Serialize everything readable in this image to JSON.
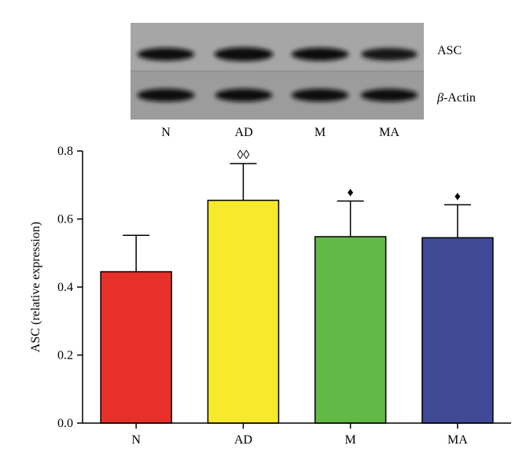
{
  "blot": {
    "bands": [
      {
        "label": "ASC",
        "prefix": "",
        "intensities": [
          0.78,
          0.95,
          0.8,
          0.72
        ]
      },
      {
        "label": "-Actin",
        "prefix": "β",
        "intensities": [
          0.82,
          0.8,
          0.78,
          0.78
        ]
      }
    ],
    "lane_labels": [
      "N",
      "AD",
      "M",
      "MA"
    ]
  },
  "chart_data": {
    "type": "bar",
    "title": "",
    "xlabel": "",
    "ylabel": "ASC (relative expression)",
    "categories": [
      "N",
      "AD",
      "M",
      "MA"
    ],
    "values": [
      0.445,
      0.655,
      0.548,
      0.545
    ],
    "errors": [
      0.107,
      0.108,
      0.105,
      0.097
    ],
    "colors": [
      "#e8302a",
      "#f6ea2b",
      "#62b946",
      "#414a94"
    ],
    "annotations": [
      "",
      "◊◊",
      "♦",
      "♦"
    ],
    "ylim": [
      0,
      0.8
    ],
    "yticks": [
      0.0,
      0.2,
      0.4,
      0.6,
      0.8
    ],
    "ytick_labels": [
      "0.0",
      "0.2",
      "0.4",
      "0.6",
      "0.8"
    ],
    "grid": false,
    "legend": "none"
  }
}
